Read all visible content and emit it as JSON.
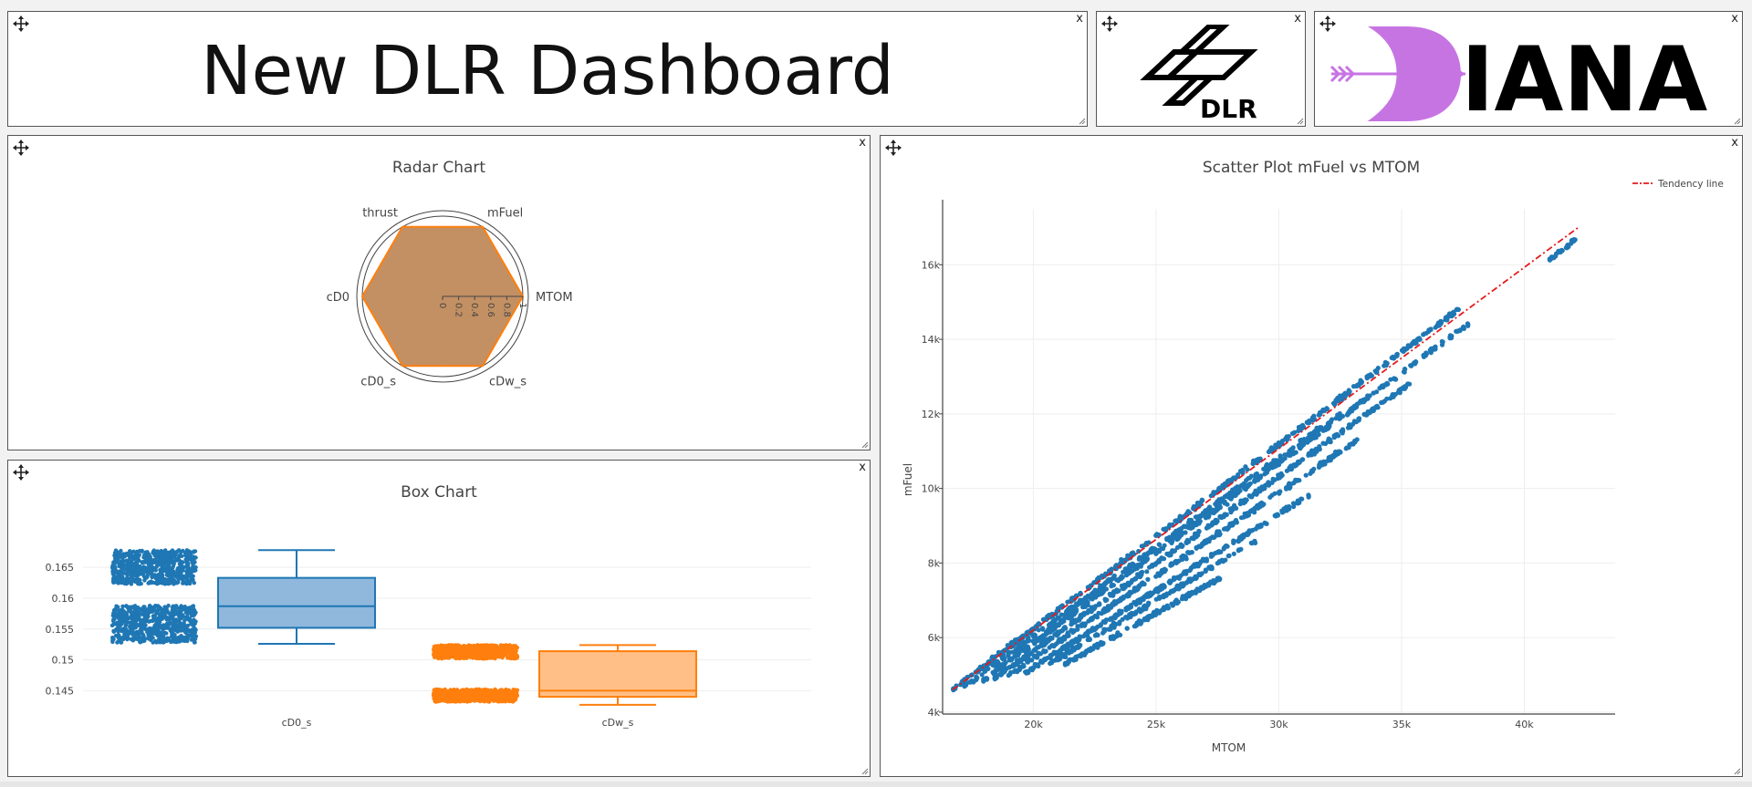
{
  "header": {
    "title": "New DLR Dashboard"
  },
  "logos": {
    "dlr_text": "DLR",
    "iana_text": "IANA"
  },
  "panel_controls": {
    "close": "x"
  },
  "radar": {
    "title": "Radar Chart",
    "axes": [
      "MTOM",
      "mFuel",
      "thrust",
      "cD0",
      "cD0_s",
      "cDw_s"
    ],
    "values": [
      1,
      1,
      1,
      1,
      1,
      1
    ],
    "radial_ticks": [
      "0",
      "0.2",
      "0.4",
      "0.6",
      "0.8",
      "1"
    ],
    "fill_color": "#c08a5b",
    "line_color": "#ff7f0e"
  },
  "box": {
    "title": "Box Chart",
    "y_ticks": [
      "0.165",
      "0.16",
      "0.155",
      "0.15",
      "0.145"
    ],
    "series": [
      {
        "name": "cD0_s",
        "color": "#1f77b4",
        "fill": "#8fb8dc",
        "min": 0.1526,
        "q1": 0.1552,
        "median": 0.1587,
        "q3": 0.1633,
        "max": 0.1678,
        "point_clusters": [
          [
            0.1623,
            0.1678
          ],
          [
            0.1528,
            0.1588
          ]
        ]
      },
      {
        "name": "cDw_s",
        "color": "#ff7f0e",
        "fill": "#ffbf86",
        "min": 0.1427,
        "q1": 0.144,
        "median": 0.145,
        "q3": 0.1514,
        "max": 0.1524,
        "point_clusters": [
          [
            0.1502,
            0.1524
          ],
          [
            0.1432,
            0.1452
          ]
        ]
      }
    ]
  },
  "chart_data": {
    "type": "scatter",
    "title": "Scatter Plot mFuel vs MTOM",
    "xlabel": "MTOM",
    "ylabel": "mFuel",
    "xlim": [
      16300,
      43700
    ],
    "ylim": [
      3950,
      17500
    ],
    "x_ticks": [
      20000,
      25000,
      30000,
      35000,
      40000
    ],
    "x_tick_labels": [
      "20k",
      "25k",
      "30k",
      "35k",
      "40k"
    ],
    "y_ticks": [
      4000,
      6000,
      8000,
      10000,
      12000,
      14000,
      16000
    ],
    "y_tick_labels": [
      "4k",
      "6k",
      "8k",
      "10k",
      "12k",
      "14k",
      "16k"
    ],
    "grid": true,
    "legend": "top-right",
    "point_color": "#1f77b4",
    "trend_color": "#e41a1c",
    "series": [
      {
        "name": "Tendency line",
        "type": "line",
        "x": [
          16700,
          42200
        ],
        "y": [
          4600,
          17000
        ]
      }
    ],
    "point_bands": [
      {
        "x": [
          16700,
          37300
        ],
        "y": [
          4600,
          14800
        ]
      },
      {
        "x": [
          17200,
          32500
        ],
        "y": [
          4700,
          12000
        ]
      },
      {
        "x": [
          17800,
          37700
        ],
        "y": [
          4800,
          14400
        ]
      },
      {
        "x": [
          18400,
          35300
        ],
        "y": [
          4900,
          12800
        ]
      },
      {
        "x": [
          19000,
          33200
        ],
        "y": [
          5000,
          11300
        ]
      },
      {
        "x": [
          19600,
          31200
        ],
        "y": [
          5050,
          9800
        ]
      },
      {
        "x": [
          20400,
          29100
        ],
        "y": [
          5200,
          8600
        ]
      },
      {
        "x": [
          21300,
          27600
        ],
        "y": [
          5300,
          7600
        ]
      },
      {
        "x": [
          41000,
          42100
        ],
        "y": [
          16100,
          16700
        ]
      }
    ]
  }
}
